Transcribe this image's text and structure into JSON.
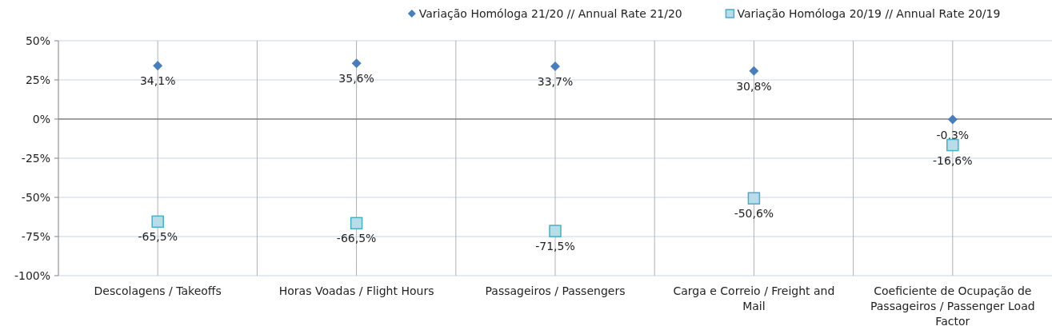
{
  "chart_data": {
    "type": "scatter",
    "categories": [
      "Descolagens / Takeoffs",
      "Horas Voadas / Flight Hours",
      "Passageiros / Passengers",
      "Carga e Correio / Freight and Mail",
      "Coeficiente de Ocupação de Passageiros / Passenger Load Factor"
    ],
    "series": [
      {
        "name": "Variação Homóloga 21/20 // Annual Rate 21/20",
        "color": "#4a7ebb",
        "marker": "diamond",
        "values": [
          34.1,
          35.6,
          33.7,
          30.8,
          -0.3
        ],
        "value_labels": [
          "34,1%",
          "35,6%",
          "33,7%",
          "30,8%",
          "-0,3%"
        ]
      },
      {
        "name": "Variação Homóloga 20/19 // Annual Rate 20/19",
        "color": "#4bacc6",
        "marker": "square",
        "values": [
          -65.5,
          -66.5,
          -71.5,
          -50.6,
          -16.6
        ],
        "value_labels": [
          "-65,5%",
          "-66,5%",
          "-71,5%",
          "-50,6%",
          "-16,6%"
        ]
      }
    ],
    "ylim": [
      -100,
      50
    ],
    "yticks": [
      {
        "value": -100,
        "label": "-100%"
      },
      {
        "value": -75,
        "label": "-75%"
      },
      {
        "value": -50,
        "label": "-50%"
      },
      {
        "value": -25,
        "label": "-25%"
      },
      {
        "value": 0,
        "label": "0%"
      },
      {
        "value": 25,
        "label": "25%"
      },
      {
        "value": 50,
        "label": "50%"
      }
    ],
    "grid": true,
    "legend": "top right"
  }
}
